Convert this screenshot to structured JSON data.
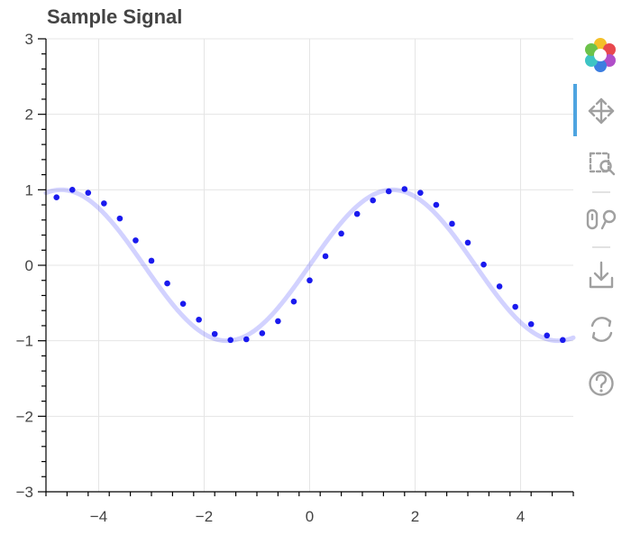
{
  "chart_data": {
    "type": "line",
    "title": "Sample Signal",
    "xlabel": "",
    "ylabel": "",
    "xlim": [
      -5,
      5
    ],
    "ylim": [
      -3,
      3
    ],
    "x_ticks": [
      "−4",
      "−2",
      "0",
      "2",
      "4"
    ],
    "x_tick_values": [
      -4,
      -2,
      0,
      2,
      4
    ],
    "y_ticks": [
      "3",
      "2",
      "1",
      "0",
      "−1",
      "−2",
      "−3"
    ],
    "y_tick_values": [
      3,
      2,
      1,
      0,
      -1,
      -2,
      -3
    ],
    "grid": true,
    "series": [
      {
        "style": "line",
        "function": "sin",
        "color": "#1f1fff",
        "opacity": 0.2,
        "x": [
          -5.0,
          -4.75,
          -4.5,
          -4.25,
          -4.0,
          -3.75,
          -3.5,
          -3.25,
          -3.0,
          -2.75,
          -2.5,
          -2.25,
          -2.0,
          -1.75,
          -1.5,
          -1.25,
          -1.0,
          -0.75,
          -0.5,
          -0.25,
          0.0,
          0.25,
          0.5,
          0.75,
          1.0,
          1.25,
          1.5,
          1.75,
          2.0,
          2.25,
          2.5,
          2.75,
          3.0,
          3.25,
          3.5,
          3.75,
          4.0,
          4.25,
          4.5,
          4.75,
          5.0
        ],
        "values": [
          0.959,
          0.999,
          0.978,
          0.895,
          0.757,
          0.572,
          0.351,
          0.108,
          -0.141,
          -0.382,
          -0.598,
          -0.778,
          -0.909,
          -0.984,
          -0.997,
          -0.949,
          -0.841,
          -0.682,
          -0.479,
          -0.247,
          0.0,
          0.247,
          0.479,
          0.682,
          0.841,
          0.949,
          0.997,
          0.984,
          0.909,
          0.778,
          0.598,
          0.382,
          0.141,
          -0.108,
          -0.351,
          -0.572,
          -0.757,
          -0.895,
          -0.978,
          -0.999,
          -0.959
        ]
      },
      {
        "style": "scatter",
        "color": "#1a1aee",
        "x": [
          -4.8,
          -4.5,
          -4.2,
          -3.9,
          -3.6,
          -3.3,
          -3.0,
          -2.7,
          -2.4,
          -2.1,
          -1.8,
          -1.5,
          -1.2,
          -0.9,
          -0.6,
          -0.3,
          0.0,
          0.3,
          0.6,
          0.9,
          1.2,
          1.5,
          1.8,
          2.1,
          2.4,
          2.7,
          3.0,
          3.3,
          3.6,
          3.9,
          4.2,
          4.5,
          4.8
        ],
        "values": [
          0.9,
          1.0,
          0.96,
          0.82,
          0.62,
          0.33,
          0.06,
          -0.24,
          -0.51,
          -0.72,
          -0.91,
          -0.99,
          -0.98,
          -0.9,
          -0.74,
          -0.48,
          -0.2,
          0.12,
          0.42,
          0.68,
          0.86,
          0.98,
          1.01,
          0.96,
          0.8,
          0.55,
          0.3,
          0.01,
          -0.28,
          -0.55,
          -0.78,
          -0.93,
          -0.99
        ]
      }
    ]
  },
  "toolbar": {
    "logo_icon": "bokeh-logo-icon",
    "tools": [
      "pan-icon",
      "box-zoom-icon",
      "wheel-zoom-icon",
      "save-icon",
      "reset-icon",
      "help-icon"
    ],
    "active_tool": "pan-icon",
    "active_color": "#4ea4e0"
  }
}
